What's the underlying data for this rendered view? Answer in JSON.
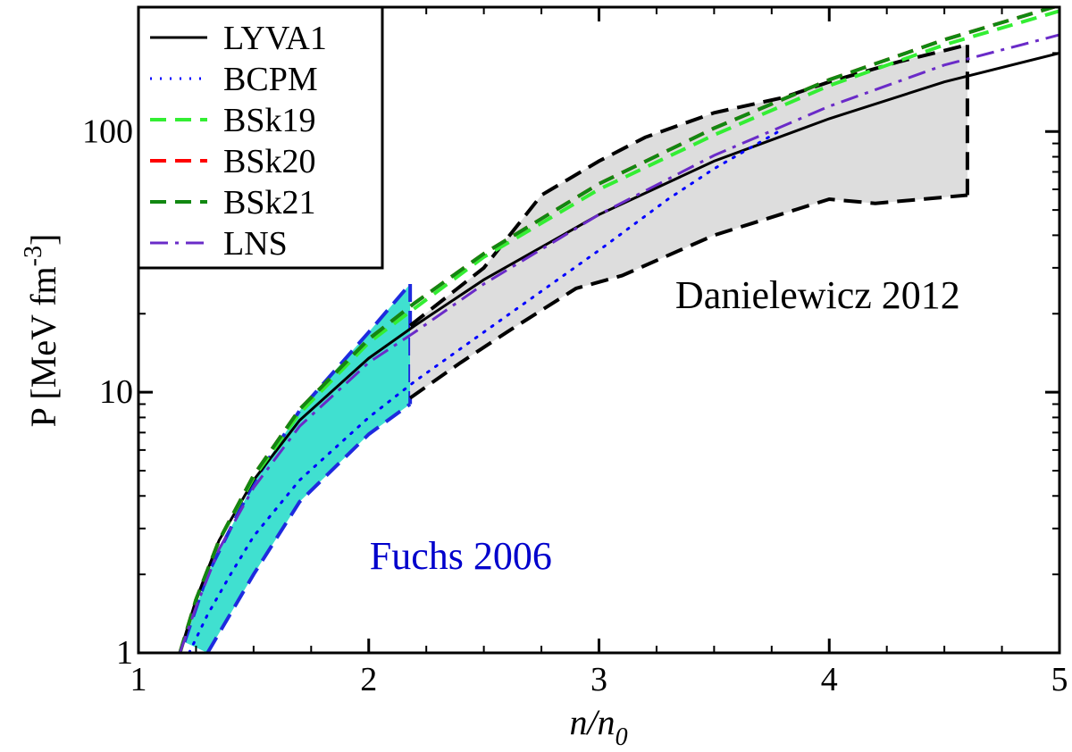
{
  "chart_data": {
    "type": "line",
    "xlabel": "n/n0",
    "xlabel_main": "n/n",
    "xlabel_sub": "0",
    "ylabel_main": "P [MeV fm",
    "ylabel_sup": "-3",
    "ylabel_close": "]",
    "y_scale": "log",
    "xlim": [
      1,
      5
    ],
    "ylim": [
      1,
      300
    ],
    "x_ticks": [
      "1",
      "2",
      "3",
      "4",
      "5"
    ],
    "x_tick_values": [
      1,
      2,
      3,
      4,
      5
    ],
    "y_ticks": [
      "1",
      "10",
      "100"
    ],
    "y_tick_values": [
      1,
      10,
      100
    ],
    "legend_position": "top-left",
    "series": [
      {
        "name": "LYVA1",
        "color": "#000000",
        "dash": "solid",
        "x": [
          1.18,
          1.25,
          1.35,
          1.5,
          1.7,
          2.0,
          2.2,
          2.5,
          3.0,
          3.5,
          4.0,
          4.5,
          5.0
        ],
        "y": [
          1.0,
          1.6,
          2.7,
          4.6,
          7.8,
          13.5,
          18,
          27,
          48,
          77,
          112,
          155,
          200
        ]
      },
      {
        "name": "BCPM",
        "color": "#0000ff",
        "dash": "dotted",
        "x": [
          1.22,
          1.3,
          1.4,
          1.5,
          1.7,
          2.0,
          2.2,
          2.5,
          3.0,
          3.3,
          3.5,
          3.78
        ],
        "y": [
          1.0,
          1.4,
          2.0,
          2.8,
          4.6,
          8.0,
          11,
          17,
          35,
          55,
          72,
          100
        ]
      },
      {
        "name": "BSk19",
        "color": "#33ee33",
        "dash": "dashed",
        "x": [
          1.18,
          1.25,
          1.35,
          1.5,
          1.7,
          2.0,
          2.2,
          2.5,
          3.0,
          3.5,
          4.0,
          4.5,
          5.0
        ],
        "y": [
          1.0,
          1.6,
          2.7,
          4.7,
          8.3,
          15.5,
          21,
          33,
          60,
          97,
          150,
          215,
          290
        ]
      },
      {
        "name": "BSk20",
        "color": "#ff0000",
        "dash": "dashed",
        "x": [
          1.18,
          1.25,
          1.35,
          1.5,
          1.7,
          2.0,
          2.2,
          2.5,
          3.0,
          3.5,
          4.0,
          4.5,
          5.0
        ],
        "y": [
          1.0,
          1.6,
          2.7,
          4.8,
          8.6,
          16,
          22,
          34,
          63,
          103,
          158,
          225,
          305
        ]
      },
      {
        "name": "BSk21",
        "color": "#118811",
        "dash": "dashed",
        "x": [
          1.18,
          1.25,
          1.35,
          1.5,
          1.7,
          2.0,
          2.2,
          2.5,
          3.0,
          3.5,
          4.0,
          4.5,
          5.0
        ],
        "y": [
          1.0,
          1.6,
          2.7,
          4.8,
          8.6,
          16,
          22,
          34,
          63,
          103,
          158,
          225,
          305
        ]
      },
      {
        "name": "LNS",
        "color": "#6a2bc8",
        "dash": "dashdot",
        "x": [
          1.18,
          1.25,
          1.35,
          1.5,
          1.7,
          2.0,
          2.2,
          2.5,
          3.0,
          3.5,
          4.0,
          4.5,
          5.0
        ],
        "y": [
          1.0,
          1.5,
          2.5,
          4.3,
          7.4,
          13,
          17,
          26,
          48,
          81,
          125,
          180,
          235
        ]
      }
    ],
    "bands": [
      {
        "name": "Fuchs 2006",
        "fill": "#40e0d0",
        "stroke": "#1e2adf",
        "upper": {
          "x": [
            1.2,
            1.3,
            1.5,
            1.7,
            2.0,
            2.18
          ],
          "y": [
            1.1,
            2.0,
            4.5,
            8.5,
            17,
            26
          ]
        },
        "lower": {
          "x": [
            1.3,
            1.5,
            1.7,
            2.0,
            2.18
          ],
          "y": [
            1.0,
            2.0,
            3.8,
            6.9,
            9.0
          ]
        }
      },
      {
        "name": "Danielewicz 2012",
        "fill": "#dddddd",
        "stroke": "#000000",
        "upper": {
          "x": [
            2.18,
            2.5,
            2.75,
            3.0,
            3.2,
            3.5,
            3.8,
            4.0,
            4.3,
            4.6
          ],
          "y": [
            18,
            30,
            57,
            77,
            95,
            118,
            135,
            155,
            185,
            215
          ]
        },
        "lower": {
          "x": [
            2.18,
            2.4,
            2.6,
            2.9,
            3.1,
            3.5,
            4.0,
            4.2,
            4.6
          ],
          "y": [
            9.5,
            13,
            17,
            25,
            28,
            40,
            55,
            53,
            57
          ]
        }
      }
    ],
    "annotations": [
      {
        "text": "Danielewicz 2012",
        "color": "#000000",
        "x": 3.95,
        "y": 21
      },
      {
        "text": "Fuchs 2006",
        "color": "#0000cc",
        "x": 2.4,
        "y": 2.1
      }
    ]
  }
}
